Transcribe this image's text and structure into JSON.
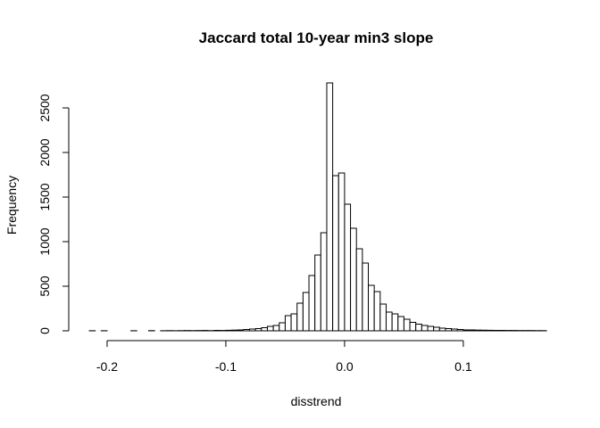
{
  "chart_data": {
    "type": "bar",
    "title": "Jaccard total 10-year min3 slope",
    "xlabel": "disstrend",
    "ylabel": "Frequency",
    "bin_width": 0.005,
    "bin_start": -0.215,
    "xlim": [
      -0.215,
      0.17
    ],
    "ylim": [
      0,
      2800
    ],
    "x_ticks": [
      -0.2,
      -0.1,
      0.0,
      0.1
    ],
    "x_tick_labels": [
      "-0.2",
      "-0.1",
      "0.0",
      "0.1"
    ],
    "y_ticks": [
      0,
      500,
      1000,
      1500,
      2000,
      2500
    ],
    "y_tick_labels": [
      "0",
      "500",
      "1000",
      "1500",
      "2000",
      "2500"
    ],
    "values": [
      1,
      0,
      1,
      0,
      0,
      0,
      0,
      1,
      0,
      0,
      2,
      0,
      1,
      2,
      1,
      2,
      3,
      2,
      3,
      4,
      2,
      5,
      4,
      6,
      8,
      10,
      15,
      20,
      25,
      35,
      50,
      60,
      90,
      170,
      190,
      310,
      430,
      620,
      850,
      1100,
      2780,
      1740,
      1770,
      1420,
      1150,
      920,
      760,
      510,
      440,
      300,
      210,
      190,
      160,
      130,
      95,
      75,
      60,
      50,
      40,
      30,
      25,
      20,
      15,
      10,
      10,
      8,
      7,
      6,
      5,
      5,
      4,
      4,
      3,
      3,
      3,
      2,
      2
    ]
  }
}
